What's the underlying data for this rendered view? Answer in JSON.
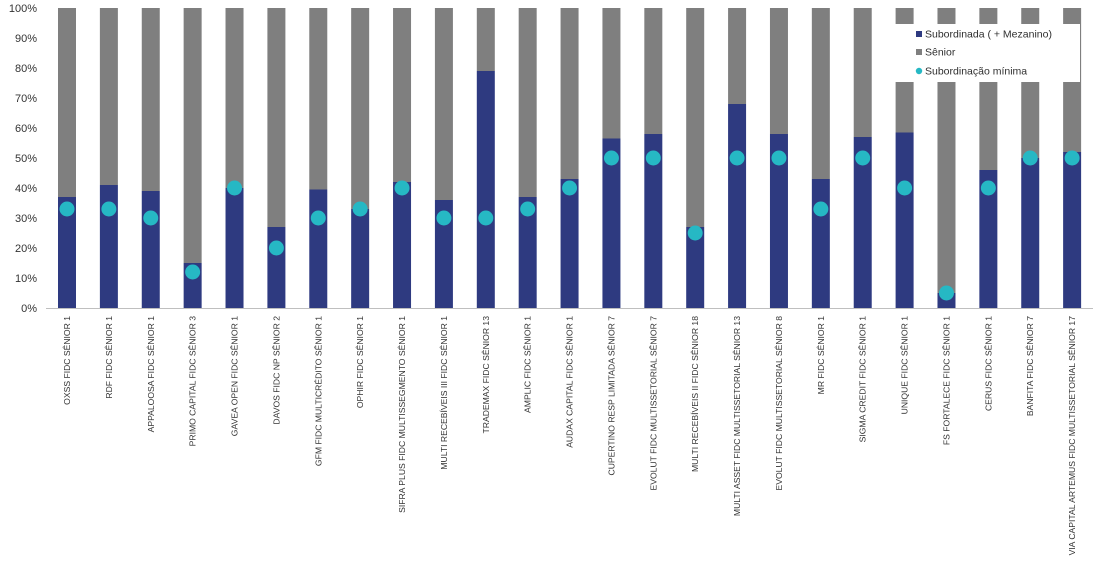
{
  "chart_data": {
    "type": "bar",
    "stacked": true,
    "ylim": [
      0,
      100
    ],
    "yticks": [
      0,
      10,
      20,
      30,
      40,
      50,
      60,
      70,
      80,
      90,
      100
    ],
    "ytick_labels": [
      "0%",
      "10%",
      "20%",
      "30%",
      "40%",
      "50%",
      "60%",
      "70%",
      "80%",
      "90%",
      "100%"
    ],
    "categories": [
      "OXSS FIDC SÊNIOR 1",
      "RDF FIDC SÊNIOR 1",
      "APPALOOSA FIDC SÊNIOR 1",
      "PRIMO CAPITAL FIDC SÊNIOR 3",
      "GAVEA OPEN FIDC SÊNIOR 1",
      "DAVOS FIDC NP SÊNIOR 2",
      "GFM FIDC MULTICRÉDITO SÊNIOR 1",
      "OPHIR FIDC SÊNIOR 1",
      "SIFRA PLUS FIDC MULTISSEGMENTO SÊNIOR 1",
      "MULTI RECEBÍVEIS III FIDC SÊNIOR 1",
      "TRADEMAX FIDC SÊNIOR 13",
      "AMPLIC FIDC SÊNIOR 1",
      "AUDAX CAPITAL FIDC SÊNIOR 1",
      "CUPERTINO RESP LIMITADA SÊNIOR 7",
      "EVOLUT FIDC MULTISSETORIAL SÊNIOR 7",
      "MULTI RECEBÍVEIS II FIDC SÊNIOR 18",
      "MULTI ASSET FIDC MULTISSETORIAL SÊNIOR 13",
      "EVOLUT FIDC MULTISSETORIAL SÊNIOR 8",
      "MR FIDC SÊNIOR 1",
      "SIGMA CREDIT FIDC SÊNIOR 1",
      "UNIQUE FIDC SÊNIOR 1",
      "FS FORTALECE FIDC SÊNIOR 1",
      "CERUS FIDC SÊNIOR 1",
      "BANFITA FIDC SÊNIOR 7",
      "VIA CAPITAL ARTEMUS FIDC MULTISSETORIAL SÊNIOR 17"
    ],
    "series": [
      {
        "name": "Subordinada ( + Mezanino)",
        "kind": "bar",
        "color": "#2E3A80",
        "values": [
          37,
          41,
          39,
          15,
          40,
          27,
          39.5,
          33,
          42,
          36,
          79,
          37,
          43,
          56.5,
          58,
          27,
          68,
          58,
          43,
          57,
          58.5,
          5,
          46,
          50,
          52
        ]
      },
      {
        "name": "Sênior",
        "kind": "bar",
        "color": "#7F7F7F",
        "values": [
          63,
          59,
          61,
          85,
          60,
          73,
          60.5,
          67,
          58,
          64,
          21,
          63,
          57,
          43.5,
          42,
          73,
          32,
          42,
          57,
          43,
          41.5,
          95,
          54,
          50,
          48
        ]
      },
      {
        "name": "Subordinação mínima",
        "kind": "marker",
        "color": "#26B8C4",
        "values": [
          33,
          33,
          30,
          12,
          40,
          20,
          30,
          33,
          40,
          30,
          30,
          33,
          40,
          50,
          50,
          25,
          50,
          50,
          33,
          50,
          40,
          5,
          40,
          50,
          50
        ]
      }
    ],
    "legend_position": "top-right",
    "title": "",
    "xlabel": "",
    "ylabel": ""
  }
}
